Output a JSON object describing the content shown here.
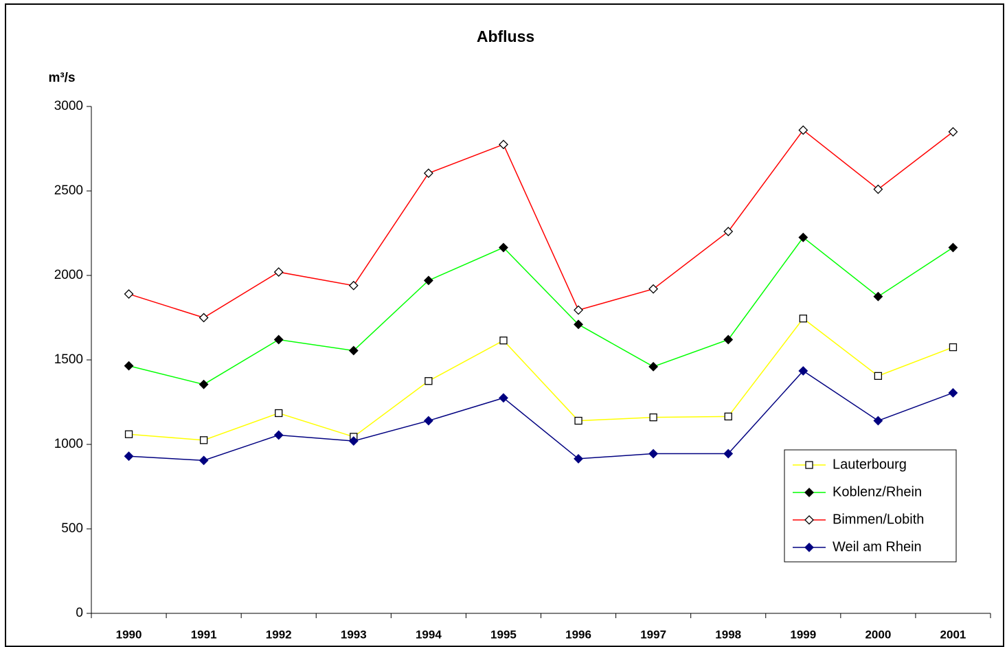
{
  "chart_data": {
    "type": "line",
    "title": "Abfluss",
    "y_label": "m³/s",
    "categories": [
      "1990",
      "1991",
      "1992",
      "1993",
      "1994",
      "1995",
      "1996",
      "1997",
      "1998",
      "1999",
      "2000",
      "2001"
    ],
    "series": [
      {
        "name": "Lauterbourg",
        "color": "#ffff00",
        "marker": "open-square",
        "marker_color": "#000000",
        "values": [
          1060,
          1025,
          1185,
          1045,
          1375,
          1615,
          1140,
          1160,
          1165,
          1745,
          1405,
          1575
        ]
      },
      {
        "name": "Koblenz/Rhein",
        "color": "#00ff00",
        "marker": "filled-diamond",
        "marker_color": "#000000",
        "values": [
          1465,
          1355,
          1620,
          1555,
          1970,
          2165,
          1710,
          1460,
          1620,
          2225,
          1875,
          2165
        ]
      },
      {
        "name": "Bimmen/Lobith",
        "color": "#ff0000",
        "marker": "open-diamond",
        "marker_color": "#000000",
        "values": [
          1890,
          1750,
          2020,
          1940,
          2605,
          2775,
          1795,
          1920,
          2260,
          2860,
          2510,
          2850
        ]
      },
      {
        "name": "Weil am Rhein",
        "color": "#000080",
        "marker": "filled-diamond",
        "marker_color": "#000080",
        "values": [
          930,
          905,
          1055,
          1020,
          1140,
          1275,
          915,
          945,
          945,
          1435,
          1140,
          1305
        ]
      }
    ],
    "ylim": [
      0,
      3000
    ],
    "yticks": [
      0,
      500,
      1000,
      1500,
      2000,
      2500,
      3000
    ],
    "grid": false,
    "legend_position": "lower right"
  }
}
